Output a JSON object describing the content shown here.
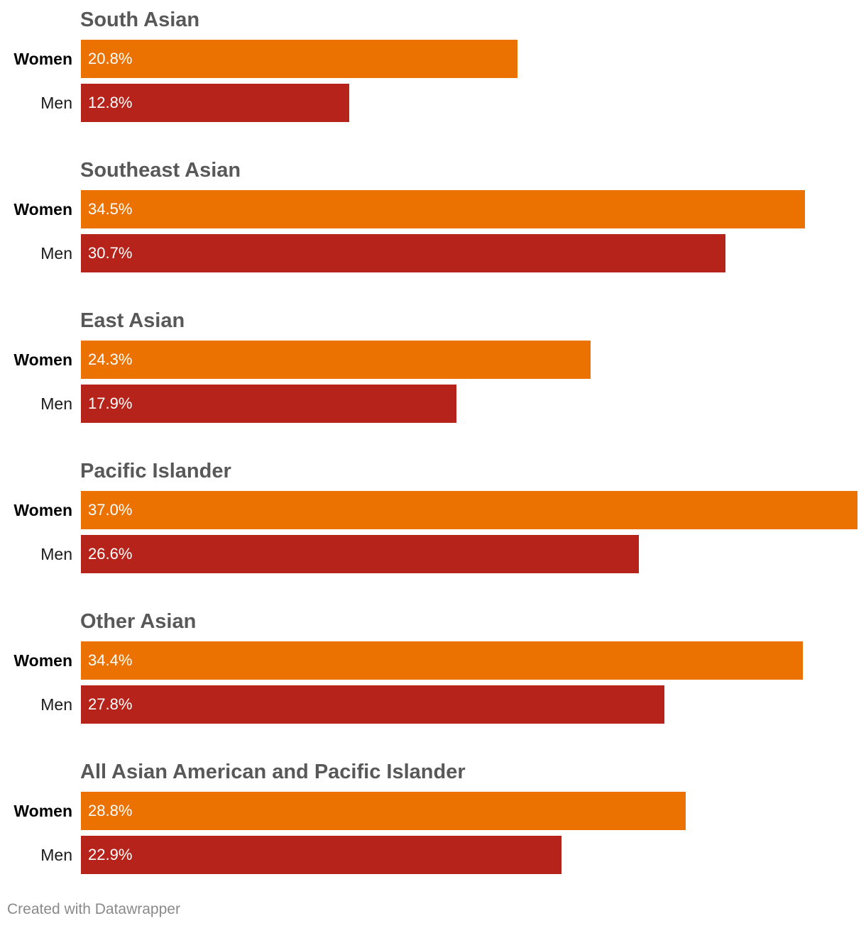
{
  "chart_data": {
    "type": "bar",
    "orientation": "horizontal",
    "categories": [
      "South Asian",
      "Southeast Asian",
      "East Asian",
      "Pacific Islander",
      "Other Asian",
      "All Asian American and Pacific Islander"
    ],
    "series": [
      {
        "name": "Women",
        "values": [
          20.8,
          34.5,
          24.3,
          37.0,
          34.4,
          28.8
        ],
        "labels": [
          "20.8%",
          "34.5%",
          "24.3%",
          "37.0%",
          "34.4%",
          "28.8%"
        ]
      },
      {
        "name": "Men",
        "values": [
          12.8,
          30.7,
          17.9,
          26.6,
          27.8,
          22.9
        ],
        "labels": [
          "12.8%",
          "30.7%",
          "17.9%",
          "26.6%",
          "27.8%",
          "22.9%"
        ]
      }
    ],
    "xlim": [
      0,
      37.0
    ],
    "grid": false,
    "colors": {
      "Women": "#eb7200",
      "Men": "#b6231a"
    }
  },
  "footer": "Created with Datawrapper"
}
